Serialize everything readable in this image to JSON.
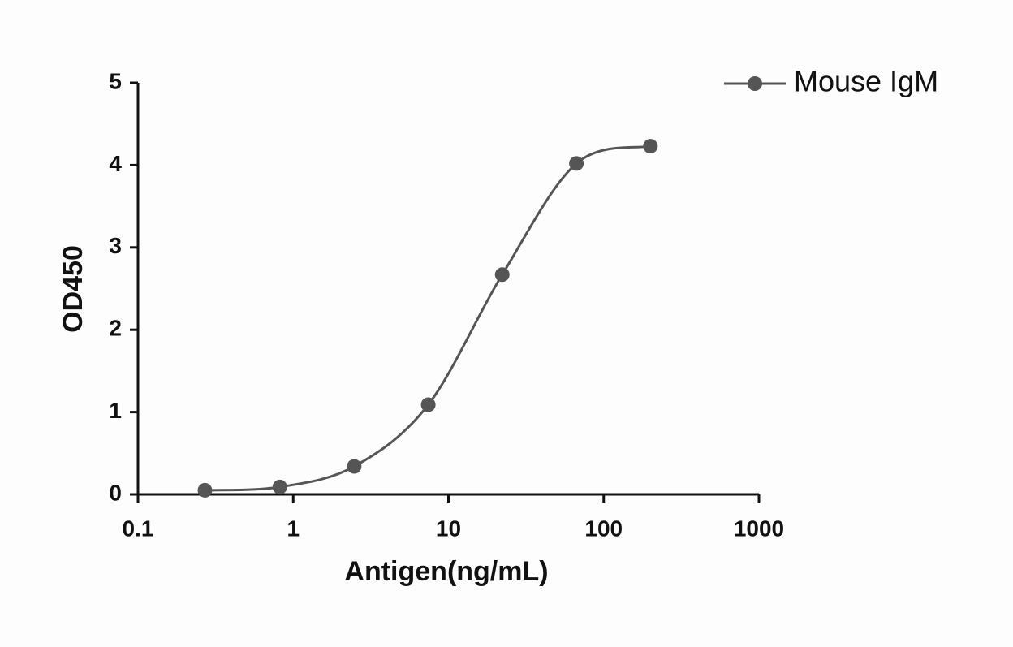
{
  "chart_data": {
    "type": "line",
    "x_label": "Antigen(ng/mL)",
    "y_label": "OD450",
    "xscale": "log",
    "xlim": [
      0.1,
      1000
    ],
    "xticks": [
      0.1,
      1,
      10,
      100,
      1000
    ],
    "ylim": [
      0,
      5
    ],
    "yticks": [
      0,
      1,
      2,
      3,
      4,
      5
    ],
    "legend": "top-right",
    "series": [
      {
        "name": "Mouse IgM",
        "color": "#555555",
        "x": [
          0.27,
          0.82,
          2.47,
          7.41,
          22.2,
          66.7,
          200
        ],
        "values": [
          0.05,
          0.09,
          0.34,
          1.09,
          2.67,
          4.02,
          4.23
        ]
      }
    ]
  }
}
